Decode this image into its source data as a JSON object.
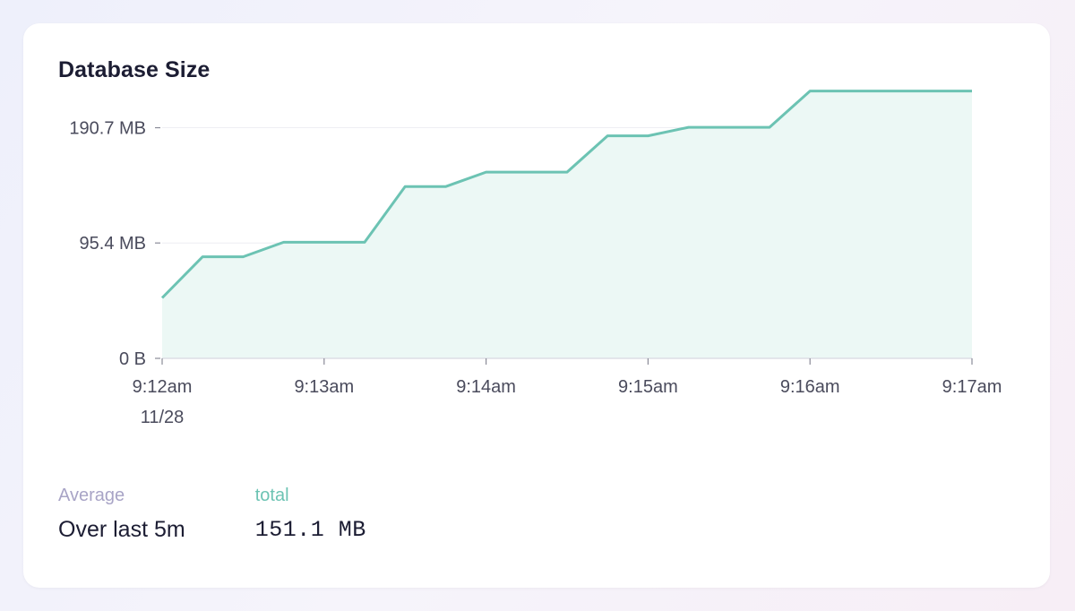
{
  "title": "Database Size",
  "chart_data": {
    "type": "area",
    "x": [
      "9:12:00",
      "9:12:15",
      "9:12:30",
      "9:12:45",
      "9:13:00",
      "9:13:15",
      "9:13:30",
      "9:13:45",
      "9:14:00",
      "9:14:15",
      "9:14:30",
      "9:14:45",
      "9:15:00",
      "9:15:15",
      "9:15:30",
      "9:15:45",
      "9:16:00",
      "9:16:15",
      "9:16:30",
      "9:16:45",
      "9:17:00"
    ],
    "series": [
      {
        "values": [
          50,
          84,
          84,
          96,
          96,
          96,
          142,
          142,
          154,
          154,
          154,
          184,
          184,
          191,
          191,
          191,
          221,
          221,
          221,
          221,
          221
        ],
        "color": "#6cc3b3"
      }
    ],
    "yunit": "MB",
    "ylim": [
      0,
      240
    ],
    "yticks": [
      {
        "value": 0,
        "label": "0 B"
      },
      {
        "value": 95.4,
        "label": "95.4 MB"
      },
      {
        "value": 190.7,
        "label": "190.7 MB"
      }
    ],
    "xticks": [
      {
        "label": "9:12am",
        "sublabel": "11/28"
      },
      {
        "label": "9:13am"
      },
      {
        "label": "9:14am"
      },
      {
        "label": "9:15am"
      },
      {
        "label": "9:16am"
      },
      {
        "label": "9:17am"
      }
    ],
    "grid": true,
    "fill_color": "#ecf8f5"
  },
  "footer": {
    "average_label": "Average",
    "average_value": "Over last 5m",
    "total_label": "total",
    "total_value": "151.1 MB"
  }
}
